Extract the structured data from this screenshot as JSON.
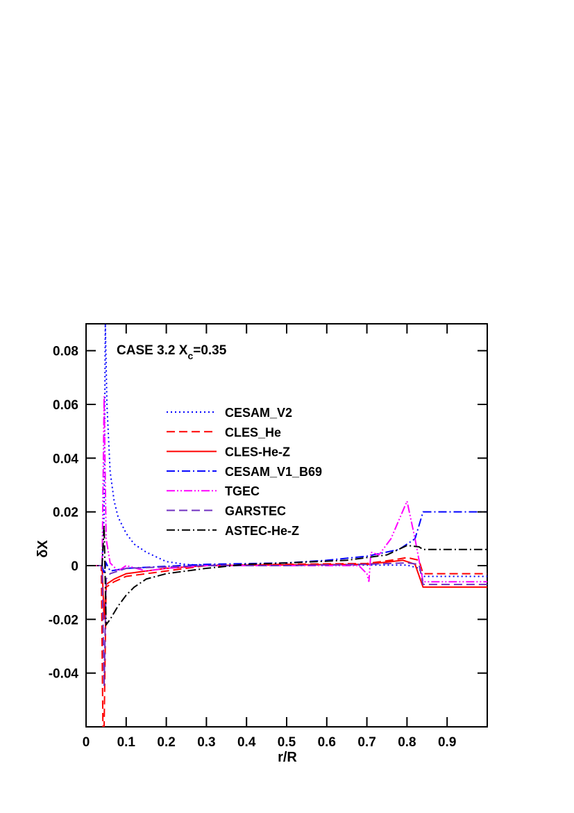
{
  "chart_data": {
    "type": "line",
    "annotation": {
      "text": "CASE 3.2 X",
      "subscript": "c",
      "suffix": "=0.35"
    },
    "x_label": "r/R",
    "y_label": "δX",
    "xlim": [
      0,
      1
    ],
    "ylim": [
      -0.06,
      0.09
    ],
    "xticks": [
      0,
      0.1,
      0.2,
      0.3,
      0.4,
      0.5,
      0.6,
      0.7,
      0.8,
      0.9
    ],
    "yticks": [
      -0.04,
      -0.02,
      0,
      0.02,
      0.04,
      0.06,
      0.08
    ],
    "legend": "upper center",
    "series": [
      {
        "name": "CESAM_V2",
        "color": "#0000ff",
        "style": "dotted",
        "x": [
          0,
          0.04,
          0.045,
          0.048,
          0.052,
          0.06,
          0.07,
          0.08,
          0.1,
          0.12,
          0.15,
          0.2,
          0.25,
          0.3,
          0.5,
          0.7,
          0.8,
          0.83,
          0.84,
          0.85,
          1.0
        ],
        "values": [
          0,
          0,
          0.02,
          0.09,
          0.06,
          0.035,
          0.024,
          0.018,
          0.012,
          0.008,
          0.005,
          0.0015,
          0.0004,
          0.0002,
          0.0003,
          0.0002,
          0.0002,
          -0.001,
          -0.004,
          -0.004,
          -0.004
        ]
      },
      {
        "name": "CLES_He",
        "color": "#ff0000",
        "style": "dashed",
        "x": [
          0,
          0.038,
          0.042,
          0.045,
          0.05,
          0.07,
          0.1,
          0.15,
          0.2,
          0.3,
          0.5,
          0.7,
          0.76,
          0.8,
          0.83,
          0.84,
          0.85,
          1.0
        ],
        "values": [
          0,
          0,
          -0.06,
          -0.06,
          -0.008,
          -0.006,
          -0.004,
          -0.003,
          -0.002,
          0,
          0.0005,
          0.0008,
          0.002,
          0.003,
          0.002,
          -0.003,
          -0.003,
          -0.003
        ]
      },
      {
        "name": "CLES-He-Z",
        "color": "#ff0000",
        "style": "solid",
        "x": [
          0,
          0.04,
          0.045,
          0.05,
          0.07,
          0.1,
          0.15,
          0.2,
          0.3,
          0.5,
          0.7,
          0.76,
          0.79,
          0.82,
          0.84,
          0.85,
          1.0
        ],
        "values": [
          0,
          0,
          -0.02,
          -0.007,
          -0.005,
          -0.003,
          -0.002,
          -0.001,
          0,
          0.0003,
          0.0005,
          0.0015,
          0.002,
          0.0005,
          -0.008,
          -0.008,
          -0.008
        ]
      },
      {
        "name": "CESAM_V1_B69",
        "color": "#0000ff",
        "style": "dashdot",
        "x": [
          0,
          0.04,
          0.045,
          0.05,
          0.06,
          0.1,
          0.3,
          0.5,
          0.6,
          0.7,
          0.78,
          0.82,
          0.84,
          0.85,
          1.0
        ],
        "values": [
          0,
          0,
          -0.003,
          0.001,
          -0.002,
          -0.001,
          0.0005,
          0.001,
          0.002,
          0.0035,
          0.006,
          0.01,
          0.02,
          0.02,
          0.02
        ]
      },
      {
        "name": "TGEC",
        "color": "#ff00ff",
        "style": "dashdotdot",
        "x": [
          0,
          0.04,
          0.045,
          0.05,
          0.06,
          0.08,
          0.1,
          0.15,
          0.2,
          0.3,
          0.5,
          0.68,
          0.7,
          0.705,
          0.71,
          0.73,
          0.76,
          0.8,
          0.82,
          0.84,
          0.85,
          1.0
        ],
        "values": [
          0,
          0,
          0.063,
          0.01,
          0.001,
          -0.002,
          0,
          -0.002,
          -0.001,
          0,
          0,
          0,
          -0.003,
          -0.006,
          0.005,
          0.004,
          0.01,
          0.024,
          0.01,
          -0.006,
          -0.006,
          -0.006
        ]
      },
      {
        "name": "GARSTEC",
        "color": "#7030c0",
        "style": "dashed",
        "x": [
          0,
          0.04,
          0.045,
          0.05,
          0.06,
          0.1,
          0.2,
          0.3,
          0.5,
          0.7,
          0.8,
          0.83,
          0.84,
          0.85,
          1.0
        ],
        "values": [
          0,
          0,
          -0.045,
          -0.005,
          -0.003,
          -0.001,
          -0.0005,
          0,
          0,
          0.0005,
          0.001,
          0.0005,
          -0.007,
          -0.007,
          -0.007
        ]
      },
      {
        "name": "ASTEC-He-Z",
        "color": "#000000",
        "style": "dashdot",
        "x": [
          0,
          0.04,
          0.045,
          0.05,
          0.06,
          0.08,
          0.1,
          0.12,
          0.15,
          0.2,
          0.3,
          0.4,
          0.5,
          0.65,
          0.75,
          0.8,
          0.83,
          0.84,
          0.85,
          1.0
        ],
        "values": [
          0,
          0,
          0.015,
          -0.022,
          -0.02,
          -0.015,
          -0.011,
          -0.008,
          -0.005,
          -0.003,
          -0.001,
          0.0005,
          0.001,
          0.002,
          0.004,
          0.0075,
          0.007,
          0.006,
          0.006,
          0.006
        ]
      }
    ]
  }
}
